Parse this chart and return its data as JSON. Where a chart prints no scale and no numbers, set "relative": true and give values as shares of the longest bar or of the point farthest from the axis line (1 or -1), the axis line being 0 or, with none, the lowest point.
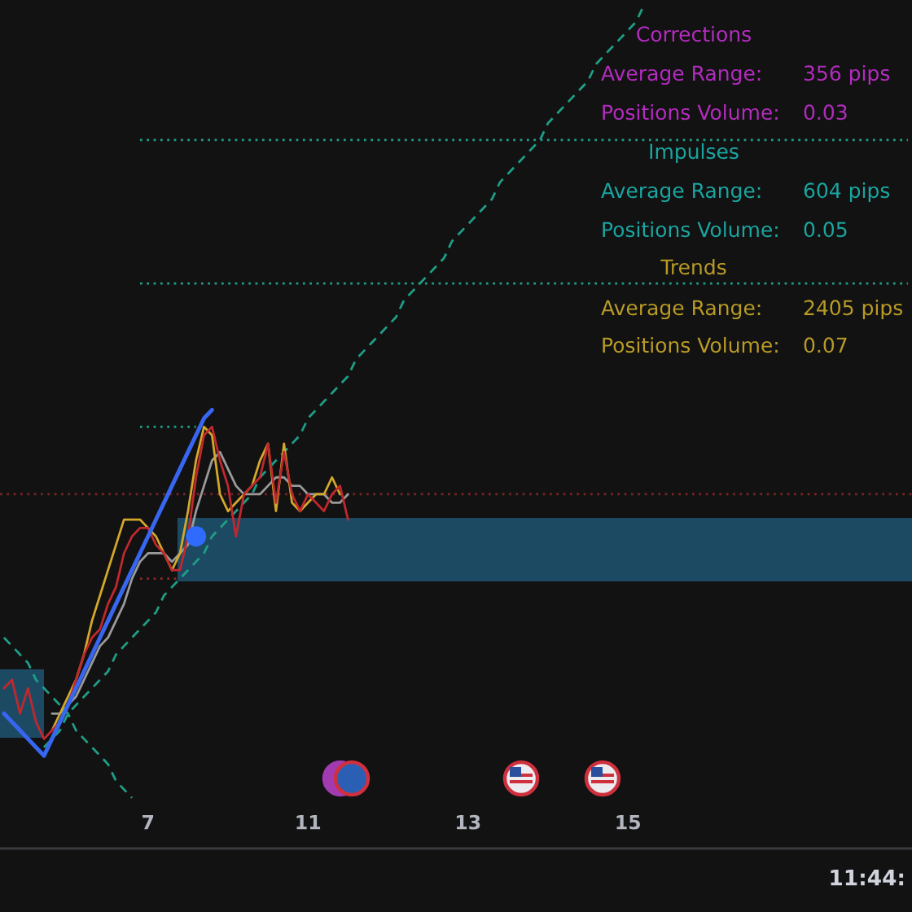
{
  "chart_data": {
    "type": "line",
    "relative": true,
    "tick_labels": "x",
    "categories": [
      null,
      null,
      null,
      null,
      null,
      null,
      null,
      null,
      null,
      null,
      null,
      null,
      null,
      null,
      null,
      null,
      null,
      null,
      "7",
      null,
      null,
      null,
      null,
      null,
      null,
      null,
      null,
      null,
      null,
      null,
      null,
      null,
      null,
      null,
      null,
      null,
      null,
      null,
      "11",
      null,
      null,
      null,
      null,
      null,
      null,
      null,
      null,
      null,
      null,
      null,
      null,
      null,
      null,
      null,
      null,
      null,
      null,
      null,
      "13",
      null,
      null,
      null,
      null,
      null,
      null,
      null,
      null,
      null,
      null,
      null,
      null,
      null,
      null,
      null,
      null,
      null,
      null,
      null,
      "15",
      null,
      null,
      null,
      null,
      null,
      null,
      null,
      null,
      null,
      null,
      null,
      null,
      null,
      null,
      null,
      null,
      null,
      null,
      null,
      null,
      null,
      null,
      null,
      null,
      null,
      null,
      null,
      null,
      null,
      null,
      null,
      null,
      null,
      null,
      null
    ],
    "series": [
      {
        "color": "#1f9e86",
        "line_style": "dashed",
        "values": [
          null,
          null,
          null,
          null,
          null,
          0.12,
          0.13,
          0.14,
          0.16,
          0.17,
          0.18,
          0.19,
          0.2,
          0.21,
          0.23,
          0.24,
          0.25,
          0.26,
          0.27,
          0.28,
          0.3,
          0.31,
          0.32,
          0.33,
          0.34,
          0.35,
          0.37,
          0.38,
          0.39,
          0.4,
          0.41,
          0.42,
          0.44,
          0.45,
          0.46,
          0.47,
          0.48,
          0.49,
          0.51,
          0.52,
          0.53,
          0.54,
          0.55,
          0.56,
          0.58,
          0.59,
          0.6,
          0.61,
          0.62,
          0.63,
          0.65,
          0.66,
          0.67,
          0.68,
          0.69,
          0.7,
          0.72,
          0.73,
          0.74,
          0.75,
          0.76,
          0.77,
          0.79,
          0.8,
          0.81,
          0.82,
          0.83,
          0.84,
          0.86,
          0.87,
          0.88,
          0.89,
          0.9,
          0.91,
          0.93,
          0.94,
          0.95,
          0.96,
          0.97,
          0.98,
          1.0,
          null,
          null,
          null,
          null,
          null,
          null,
          null,
          null,
          null,
          null,
          null,
          null,
          null,
          null,
          null,
          null,
          null,
          null,
          null,
          null,
          null,
          null,
          null,
          null,
          null,
          null,
          null,
          null,
          null,
          null,
          null,
          null,
          null
        ]
      },
      {
        "color": "#1f9e86",
        "line_style": "dashed",
        "values": [
          0.25,
          0.24,
          0.23,
          0.22,
          0.2,
          0.19,
          0.18,
          0.17,
          0.16,
          0.14,
          0.13,
          0.12,
          0.11,
          0.1,
          0.08,
          0.07,
          0.06,
          null,
          null,
          null,
          null,
          null,
          null,
          null,
          null,
          null,
          null,
          null,
          null,
          null,
          null,
          null,
          null,
          null,
          null,
          null,
          null,
          null,
          null,
          null,
          null,
          null,
          null,
          null,
          null,
          null,
          null,
          null,
          null,
          null,
          null,
          null,
          null,
          null,
          null,
          null,
          null,
          null,
          null,
          null,
          null,
          null,
          null,
          null,
          null,
          null,
          null,
          null,
          null,
          null,
          null,
          null,
          null,
          null,
          null,
          null,
          null,
          null,
          null,
          null,
          null,
          null,
          null,
          null,
          null,
          null,
          null,
          null,
          null,
          null,
          null,
          null,
          null,
          null,
          null,
          null,
          null,
          null,
          null,
          null,
          null,
          null,
          null,
          null,
          null,
          null,
          null,
          null,
          null,
          null,
          null,
          null,
          null,
          null
        ]
      },
      {
        "color": "#1f9e86",
        "line_style": "dotted",
        "values": [
          null,
          null,
          null,
          null,
          null,
          null,
          null,
          null,
          null,
          null,
          null,
          null,
          null,
          null,
          null,
          null,
          null,
          0.84,
          0.84,
          0.84,
          0.84,
          0.84,
          0.84,
          0.84,
          0.84,
          0.84,
          0.84,
          0.84,
          0.84,
          0.84,
          0.84,
          0.84,
          0.84,
          0.84,
          0.84,
          0.84,
          0.84,
          0.84,
          0.84,
          0.84,
          0.84,
          0.84,
          0.84,
          0.84,
          0.84,
          0.84,
          0.84,
          0.84,
          0.84,
          0.84,
          0.84,
          0.84,
          0.84,
          0.84,
          0.84,
          0.84,
          0.84,
          0.84,
          0.84,
          0.84,
          0.84,
          0.84,
          0.84,
          0.84,
          0.84,
          0.84,
          0.84,
          0.84,
          0.84,
          0.84,
          0.84,
          0.84,
          0.84,
          0.84,
          0.84,
          0.84,
          0.84,
          0.84,
          0.84,
          0.84,
          0.84,
          0.84,
          0.84,
          0.84,
          0.84,
          0.84,
          0.84,
          0.84,
          0.84,
          0.84,
          0.84,
          0.84,
          0.84,
          0.84,
          0.84,
          0.84,
          0.84,
          0.84,
          0.84,
          0.84,
          0.84,
          0.84,
          0.84,
          0.84,
          0.84,
          0.84,
          0.84,
          0.84,
          0.84,
          0.84,
          0.84,
          0.84,
          0.84,
          0.84
        ]
      },
      {
        "color": "#1f9e86",
        "line_style": "dotted",
        "values": [
          null,
          null,
          null,
          null,
          null,
          null,
          null,
          null,
          null,
          null,
          null,
          null,
          null,
          null,
          null,
          null,
          null,
          0.67,
          0.67,
          0.67,
          0.67,
          0.67,
          0.67,
          0.67,
          0.67,
          0.67,
          0.67,
          0.67,
          0.67,
          0.67,
          0.67,
          0.67,
          0.67,
          0.67,
          0.67,
          0.67,
          0.67,
          0.67,
          0.67,
          0.67,
          0.67,
          0.67,
          0.67,
          0.67,
          0.67,
          0.67,
          0.67,
          0.67,
          0.67,
          0.67,
          0.67,
          0.67,
          0.67,
          0.67,
          0.67,
          0.67,
          0.67,
          0.67,
          0.67,
          0.67,
          0.67,
          0.67,
          0.67,
          0.67,
          0.67,
          0.67,
          0.67,
          0.67,
          0.67,
          0.67,
          0.67,
          0.67,
          0.67,
          0.67,
          0.67,
          0.67,
          0.67,
          0.67,
          0.67,
          0.67,
          0.67,
          0.67,
          0.67,
          0.67,
          0.67,
          0.67,
          0.67,
          0.67,
          0.67,
          0.67,
          0.67,
          0.67,
          0.67,
          0.67,
          0.67,
          0.67,
          0.67,
          0.67,
          0.67,
          0.67,
          0.67,
          0.67,
          0.67,
          0.67,
          0.67,
          0.67,
          0.67,
          0.67,
          0.67,
          0.67,
          0.67,
          0.67,
          0.67,
          0.67
        ]
      },
      {
        "color": "#1f9e86",
        "line_style": "dotted",
        "values": [
          null,
          null,
          null,
          null,
          null,
          null,
          null,
          null,
          null,
          null,
          null,
          null,
          null,
          null,
          null,
          null,
          null,
          0.5,
          0.5,
          0.5,
          0.5,
          0.5,
          0.5,
          0.5,
          0.5,
          null,
          null,
          null,
          null,
          null,
          null,
          null,
          null,
          null,
          null,
          null,
          null,
          null,
          null,
          null,
          null,
          null,
          null,
          null,
          null,
          null,
          null,
          null,
          null,
          null,
          null,
          null,
          null,
          null,
          null,
          null,
          null,
          null,
          null,
          null,
          null,
          null,
          null,
          null,
          null,
          null,
          null,
          null,
          null,
          null,
          null,
          null,
          null,
          null,
          null,
          null,
          null,
          null,
          null,
          null,
          null,
          null,
          null,
          null,
          null,
          null,
          null,
          null,
          null,
          null,
          null,
          null,
          null,
          null,
          null,
          null,
          null,
          null,
          null,
          null,
          null,
          null,
          null,
          null,
          null,
          null,
          null,
          null,
          null,
          null,
          null,
          null,
          null,
          null
        ]
      },
      {
        "color": "#8b2a2a",
        "line_style": "dotted",
        "values": [
          null,
          null,
          null,
          null,
          null,
          null,
          null,
          null,
          null,
          null,
          null,
          null,
          null,
          null,
          null,
          null,
          null,
          0.32,
          0.32,
          0.32,
          0.32,
          0.32,
          0.32,
          null,
          null,
          null,
          null,
          null,
          null,
          null,
          null,
          null,
          null,
          null,
          null,
          null,
          null,
          null,
          null,
          null,
          null,
          null,
          null,
          null,
          null,
          null,
          null,
          null,
          null,
          null,
          null,
          null,
          null,
          null,
          null,
          null,
          null,
          null,
          null,
          null,
          null,
          null,
          null,
          null,
          null,
          null,
          null,
          null,
          null,
          null,
          null,
          null,
          null,
          null,
          null,
          null,
          null,
          null,
          null,
          null,
          null,
          null,
          null,
          null,
          null,
          null,
          null,
          null,
          null,
          null,
          null,
          null,
          null,
          null,
          null,
          null,
          null,
          null,
          null,
          null,
          null,
          null,
          null,
          null,
          null,
          null,
          null,
          null,
          null,
          null,
          null,
          null,
          null,
          null
        ]
      },
      {
        "color": "#9a9a9a",
        "values": [
          null,
          null,
          null,
          null,
          null,
          null,
          0.16,
          0.16,
          0.17,
          0.18,
          0.2,
          0.22,
          0.24,
          0.25,
          0.27,
          0.29,
          0.32,
          0.34,
          0.35,
          0.35,
          0.35,
          0.34,
          0.35,
          0.36,
          0.4,
          0.43,
          0.46,
          0.47,
          0.45,
          0.43,
          0.42,
          0.42,
          0.42,
          0.43,
          0.44,
          0.44,
          0.43,
          0.43,
          0.42,
          0.42,
          0.42,
          0.41,
          0.41,
          0.42,
          null,
          null,
          null,
          null,
          null,
          null,
          null,
          null,
          null,
          null,
          null,
          null,
          null,
          null,
          null,
          null,
          null,
          null,
          null,
          null,
          null,
          null,
          null,
          null,
          null,
          null,
          null,
          null,
          null,
          null,
          null,
          null,
          null,
          null,
          null,
          null,
          null,
          null,
          null,
          null,
          null,
          null,
          null,
          null,
          null,
          null,
          null,
          null,
          null,
          null,
          null,
          null,
          null,
          null,
          null,
          null,
          null,
          null,
          null,
          null,
          null,
          null,
          null,
          null,
          null,
          null,
          null,
          null,
          null,
          null
        ]
      },
      {
        "color": "#d4a82a",
        "values": [
          null,
          null,
          null,
          null,
          null,
          null,
          0.14,
          0.16,
          0.18,
          0.2,
          0.23,
          0.27,
          0.3,
          0.33,
          0.36,
          0.39,
          0.39,
          0.39,
          0.38,
          0.37,
          0.35,
          0.33,
          0.35,
          0.4,
          0.46,
          0.5,
          0.49,
          0.42,
          0.4,
          0.41,
          0.42,
          0.43,
          0.46,
          0.48,
          0.4,
          0.48,
          0.41,
          0.4,
          0.41,
          0.42,
          0.42,
          0.44,
          0.42,
          null,
          null,
          null,
          null,
          null,
          null,
          null,
          null,
          null,
          null,
          null,
          null,
          null,
          null,
          null,
          null,
          null,
          null,
          null,
          null,
          null,
          null,
          null,
          null,
          null,
          null,
          null,
          null,
          null,
          null,
          null,
          null,
          null,
          null,
          null,
          null,
          null,
          null,
          null,
          null,
          null,
          null,
          null,
          null,
          null,
          null,
          null,
          null,
          null,
          null,
          null,
          null,
          null,
          null,
          null,
          null,
          null,
          null,
          null,
          null,
          null,
          null,
          null,
          null,
          null,
          null,
          null,
          null,
          null,
          null,
          null
        ]
      },
      {
        "color": "#c0282e",
        "values": [
          0.19,
          0.2,
          0.16,
          0.19,
          0.15,
          0.13,
          0.14,
          0.15,
          0.17,
          0.2,
          0.23,
          0.25,
          0.26,
          0.29,
          0.31,
          0.35,
          0.37,
          0.38,
          0.38,
          0.36,
          0.35,
          0.33,
          0.33,
          0.37,
          0.44,
          0.49,
          0.5,
          0.46,
          0.43,
          0.37,
          0.42,
          0.43,
          0.44,
          0.48,
          0.41,
          0.47,
          0.42,
          0.4,
          0.42,
          0.41,
          0.4,
          0.42,
          0.43,
          0.39,
          null,
          null,
          null,
          null,
          null,
          null,
          null,
          null,
          null,
          null,
          null,
          null,
          null,
          null,
          null,
          null,
          null,
          null,
          null,
          null,
          null,
          null,
          null,
          null,
          null,
          null,
          null,
          null,
          null,
          null,
          null,
          null,
          null,
          null,
          null,
          null,
          null,
          null,
          null,
          null,
          null,
          null,
          null,
          null,
          null,
          null,
          null,
          null,
          null,
          null,
          null,
          null,
          null,
          null,
          null,
          null,
          null,
          null,
          null,
          null,
          null,
          null,
          null,
          null,
          null,
          null,
          null,
          null,
          null,
          null
        ]
      },
      {
        "color": "#3766f0",
        "values": [
          0.16,
          0.15,
          0.14,
          0.13,
          0.12,
          0.11,
          0.13,
          0.15,
          0.17,
          0.19,
          0.21,
          0.23,
          0.25,
          0.27,
          0.29,
          0.31,
          0.33,
          0.35,
          0.37,
          0.39,
          0.41,
          0.43,
          0.45,
          0.47,
          0.49,
          0.51,
          0.52,
          null,
          null,
          null,
          null,
          null,
          null,
          null,
          null,
          null,
          null,
          null,
          null,
          null,
          null,
          null,
          null,
          null,
          null,
          null,
          null,
          null,
          null,
          null,
          null,
          null,
          null,
          null,
          null,
          null,
          null,
          null,
          null,
          null,
          null,
          null,
          null,
          null,
          null,
          null,
          null,
          null,
          null,
          null,
          null,
          null,
          null,
          null,
          null,
          null,
          null,
          null,
          null,
          null,
          null,
          null,
          null,
          null,
          null,
          null,
          null,
          null,
          null,
          null,
          null,
          null,
          null,
          null,
          null,
          null,
          null,
          null,
          null,
          null,
          null,
          null,
          null,
          null,
          null,
          null,
          null,
          null,
          null,
          null,
          null,
          null,
          null,
          null
        ]
      },
      {
        "type": "scatter",
        "color": "#2f6bff",
        "values": [
          null,
          null,
          null,
          null,
          null,
          null,
          null,
          null,
          null,
          null,
          null,
          null,
          null,
          null,
          null,
          null,
          null,
          null,
          null,
          null,
          null,
          null,
          null,
          null,
          0.37,
          null,
          null,
          null,
          null,
          null,
          null,
          null,
          null,
          null,
          null,
          null,
          null,
          null,
          null,
          null,
          null,
          null,
          null,
          null,
          null,
          null,
          null,
          null,
          null,
          null,
          null,
          null,
          null,
          null,
          null,
          null,
          null,
          null,
          null,
          null,
          null,
          null,
          null,
          null,
          null,
          null,
          null,
          null,
          null,
          null,
          null,
          null,
          null,
          null,
          null,
          null,
          null,
          null,
          null,
          null,
          null,
          null,
          null,
          null,
          null,
          null,
          null,
          null,
          null,
          null,
          null,
          null,
          null,
          null,
          null,
          null,
          null,
          null,
          null,
          null,
          null,
          null,
          null,
          null,
          null,
          null,
          null,
          null,
          null,
          null,
          null,
          null,
          null,
          null
        ]
      }
    ],
    "ref_lines": [
      {
        "axis": "y",
        "value": 0.42,
        "color": "#7a2424",
        "line_style": "dotted"
      }
    ],
    "annotations": [
      "Corrections",
      "Average Range:",
      "356 pips",
      "Positions Volume:",
      "0.03",
      "Impulses",
      "Average Range:",
      "604 pips",
      "Positions Volume:",
      "0.05",
      "Trends",
      "Average Range:",
      "2405 pips",
      "Positions Volume:",
      "0.07",
      "11:44:"
    ]
  }
}
